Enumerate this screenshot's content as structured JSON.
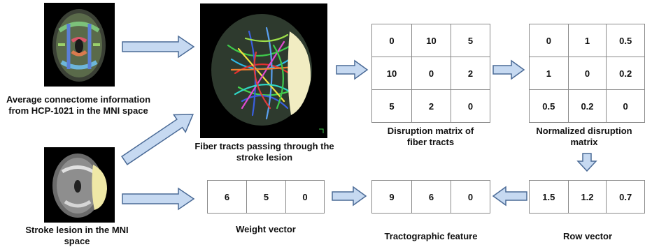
{
  "images": {
    "connectome": {
      "caption": "Average connectome information from HCP-1021 in the MNI space"
    },
    "fiber_tracts": {
      "caption": "Fiber tracts passing through the stroke lesion"
    },
    "lesion": {
      "caption": "Stroke lesion in the MNI space"
    }
  },
  "disruption_matrix": {
    "caption": "Disruption matrix of fiber tracts",
    "rows": [
      [
        "0",
        "10",
        "5"
      ],
      [
        "10",
        "0",
        "2"
      ],
      [
        "5",
        "2",
        "0"
      ]
    ]
  },
  "normalized_matrix": {
    "caption": "Normalized disruption matrix",
    "rows": [
      [
        "0",
        "1",
        "0.5"
      ],
      [
        "1",
        "0",
        "0.2"
      ],
      [
        "0.5",
        "0.2",
        "0"
      ]
    ]
  },
  "weight_vector": {
    "caption": "Weight vector",
    "values": [
      "6",
      "5",
      "0"
    ]
  },
  "tractographic_feature": {
    "caption": "Tractographic feature",
    "values": [
      "9",
      "6",
      "0"
    ]
  },
  "row_vector": {
    "caption": "Row vector",
    "values": [
      "1.5",
      "1.2",
      "0.7"
    ]
  },
  "colors": {
    "arrow_fill": "#c6d9f1",
    "arrow_stroke": "#4a6a96",
    "grid": "#8a8a8a",
    "lesion": "#efe8a6"
  }
}
